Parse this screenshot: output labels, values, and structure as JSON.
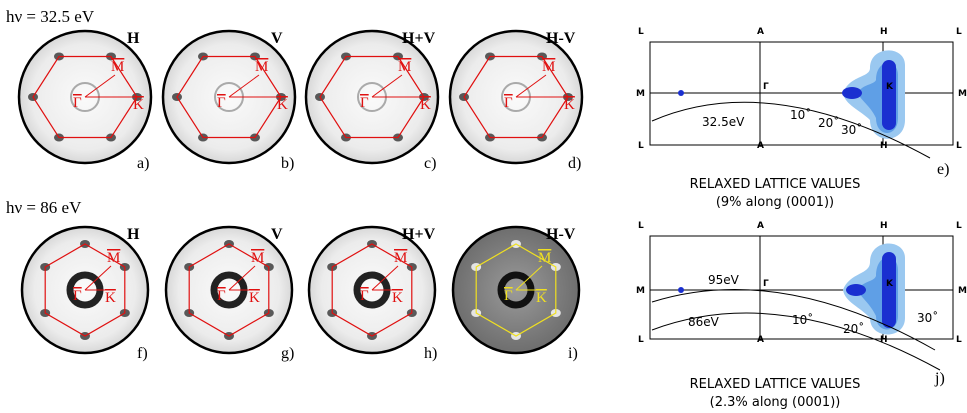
{
  "rows": [
    {
      "energy": "hν = 32.5 eV",
      "panels": [
        {
          "mode": "H",
          "letter": "a)",
          "color": "#e01010"
        },
        {
          "mode": "V",
          "letter": "b)",
          "color": "#e01010"
        },
        {
          "mode": "H+V",
          "letter": "c)",
          "color": "#e01010"
        },
        {
          "mode": "H-V",
          "letter": "d)",
          "color": "#e01010"
        }
      ]
    },
    {
      "energy": "hν = 86 eV",
      "panels": [
        {
          "mode": "H",
          "letter": "f)",
          "color": "#e01010"
        },
        {
          "mode": "V",
          "letter": "g)",
          "color": "#e01010"
        },
        {
          "mode": "H+V",
          "letter": "h)",
          "color": "#e01010"
        },
        {
          "mode": "H-V",
          "letter": "i)",
          "color": "#f0e020"
        }
      ]
    }
  ],
  "symbols": {
    "gamma": "Γ",
    "m": "M",
    "k": "K"
  },
  "points": {
    "L": "L",
    "A": "A",
    "H": "H",
    "M": "M",
    "Gamma": "Γ",
    "K": "K"
  },
  "diagrams": [
    {
      "energies": [
        "32.5eV"
      ],
      "angles": [
        "10˚",
        "20˚",
        "30˚"
      ],
      "caption": [
        "RELAXED LATTICE VALUES",
        "(9% along (0001))"
      ],
      "letter": "e)"
    },
    {
      "energies": [
        "95eV",
        "86eV"
      ],
      "angles": [
        "10˚",
        "20˚",
        "30˚"
      ],
      "caption": [
        "RELAXED LATTICE VALUES",
        "(2.3% along (0001))"
      ],
      "letter": "j)"
    }
  ]
}
